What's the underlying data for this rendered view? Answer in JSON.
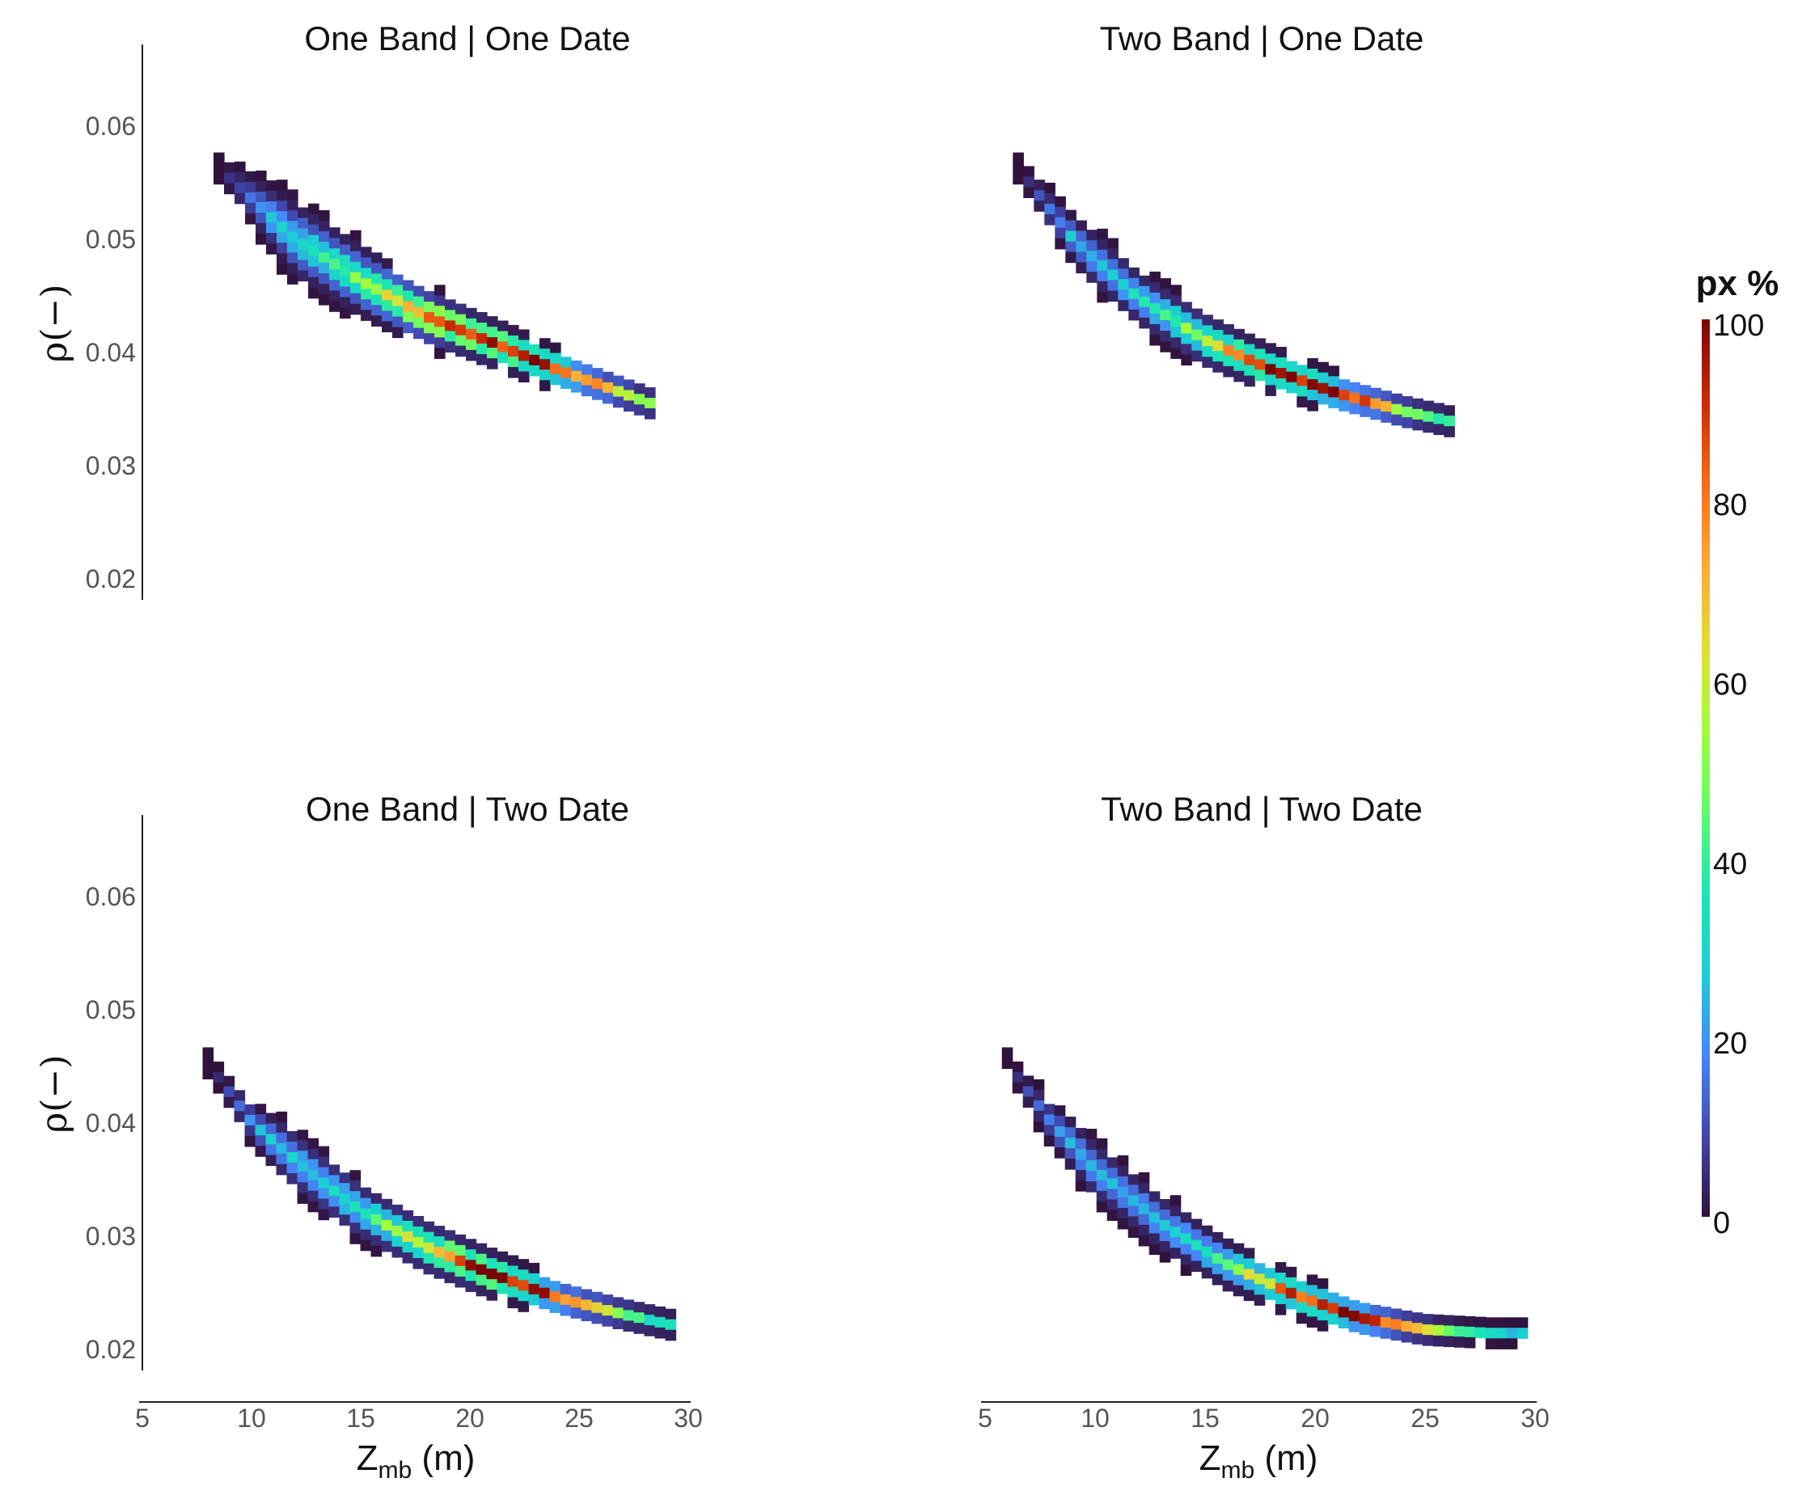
{
  "figure": {
    "colorbar": {
      "title": "px %",
      "ticks": [
        "100",
        "80",
        "60",
        "40",
        "20",
        "0"
      ],
      "min": 0,
      "max": 100,
      "palette": [
        "#30123b",
        "#4146ac",
        "#4686fa",
        "#1bcfd4",
        "#1be5b5",
        "#62fc6b",
        "#a4fc3c",
        "#e1dd37",
        "#fca935",
        "#f66b19",
        "#ca2a04",
        "#7a0403"
      ]
    }
  },
  "chart_data": [
    {
      "type": "heatmap",
      "title": "One Band | One Date",
      "xlabel": "",
      "ylabel": "ρ(−)",
      "x_ticks": [],
      "y_ticks": [
        "0.06",
        "0.05",
        "0.04",
        "0.03",
        "0.02"
      ],
      "xlim": [
        5,
        30
      ],
      "ylim": [
        0.018,
        0.066
      ],
      "color_scale": "px %",
      "band": {
        "centerline": [
          [
            8.5,
            0.0565
          ],
          [
            12.0,
            0.0505
          ],
          [
            15.0,
            0.047
          ],
          [
            18.0,
            0.044
          ],
          [
            21.0,
            0.0418
          ],
          [
            24.0,
            0.0395
          ],
          [
            26.0,
            0.0382
          ],
          [
            28.5,
            0.0365
          ]
        ],
        "halfwidth": [
          [
            8.5,
            0.0012
          ],
          [
            12.0,
            0.004
          ],
          [
            16.0,
            0.0032
          ],
          [
            20.0,
            0.0022
          ],
          [
            24.0,
            0.0018
          ],
          [
            28.5,
            0.0013
          ]
        ],
        "peak_x": [
          18,
          25
        ],
        "peak_pct": 100
      }
    },
    {
      "type": "heatmap",
      "title": "Two Band | One Date",
      "xlabel": "",
      "ylabel": "",
      "x_ticks": [],
      "y_ticks": [],
      "xlim": [
        5,
        30
      ],
      "ylim": [
        0.018,
        0.066
      ],
      "color_scale": "px %",
      "band": {
        "centerline": [
          [
            6.5,
            0.0565
          ],
          [
            9.0,
            0.0505
          ],
          [
            12.0,
            0.0455
          ],
          [
            15.0,
            0.042
          ],
          [
            18.0,
            0.0395
          ],
          [
            21.0,
            0.0375
          ],
          [
            24.0,
            0.036
          ],
          [
            26.5,
            0.035
          ]
        ],
        "halfwidth": [
          [
            6.5,
            0.0012
          ],
          [
            10.0,
            0.0028
          ],
          [
            14.0,
            0.0026
          ],
          [
            18.0,
            0.002
          ],
          [
            22.0,
            0.0016
          ],
          [
            26.5,
            0.0012
          ]
        ],
        "peak_x": [
          17,
          22
        ],
        "peak_pct": 100
      }
    },
    {
      "type": "heatmap",
      "title": "One Band | Two Date",
      "xlabel": "Z_mb (m)",
      "ylabel": "ρ(−)",
      "x_ticks": [
        "5",
        "10",
        "15",
        "20",
        "25",
        "30"
      ],
      "y_ticks": [
        "0.06",
        "0.05",
        "0.04",
        "0.03",
        "0.02"
      ],
      "xlim": [
        5,
        30
      ],
      "ylim": [
        0.018,
        0.066
      ],
      "color_scale": "px %",
      "band": {
        "centerline": [
          [
            8.0,
            0.046
          ],
          [
            10.0,
            0.041
          ],
          [
            12.5,
            0.037
          ],
          [
            15.0,
            0.0335
          ],
          [
            18.0,
            0.0305
          ],
          [
            21.0,
            0.0282
          ],
          [
            24.0,
            0.0262
          ],
          [
            27.0,
            0.0248
          ],
          [
            29.5,
            0.0238
          ]
        ],
        "halfwidth": [
          [
            8.0,
            0.0008
          ],
          [
            12.0,
            0.0032
          ],
          [
            16.0,
            0.0026
          ],
          [
            20.0,
            0.0022
          ],
          [
            24.0,
            0.0016
          ],
          [
            29.5,
            0.0012
          ]
        ],
        "peak_x": [
          19,
          24
        ],
        "peak_pct": 100
      }
    },
    {
      "type": "heatmap",
      "title": "Two Band | Two Date",
      "xlabel": "Z_mb (m)",
      "ylabel": "",
      "x_ticks": [
        "5",
        "10",
        "15",
        "20",
        "25",
        "30"
      ],
      "y_ticks": [],
      "xlim": [
        5,
        30
      ],
      "ylim": [
        0.018,
        0.066
      ],
      "color_scale": "px %",
      "band": {
        "centerline": [
          [
            6.0,
            0.046
          ],
          [
            8.0,
            0.041
          ],
          [
            10.0,
            0.037
          ],
          [
            13.0,
            0.0325
          ],
          [
            16.0,
            0.029
          ],
          [
            19.0,
            0.0265
          ],
          [
            22.0,
            0.0245
          ],
          [
            25.0,
            0.0235
          ],
          [
            28.0,
            0.0232
          ],
          [
            29.5,
            0.0232
          ]
        ],
        "halfwidth": [
          [
            6.0,
            0.001
          ],
          [
            10.0,
            0.003
          ],
          [
            14.0,
            0.0026
          ],
          [
            18.0,
            0.002
          ],
          [
            22.0,
            0.0016
          ],
          [
            29.5,
            0.0008
          ]
        ],
        "peak_x": [
          19,
          23
        ],
        "peak_pct": 100
      }
    }
  ]
}
